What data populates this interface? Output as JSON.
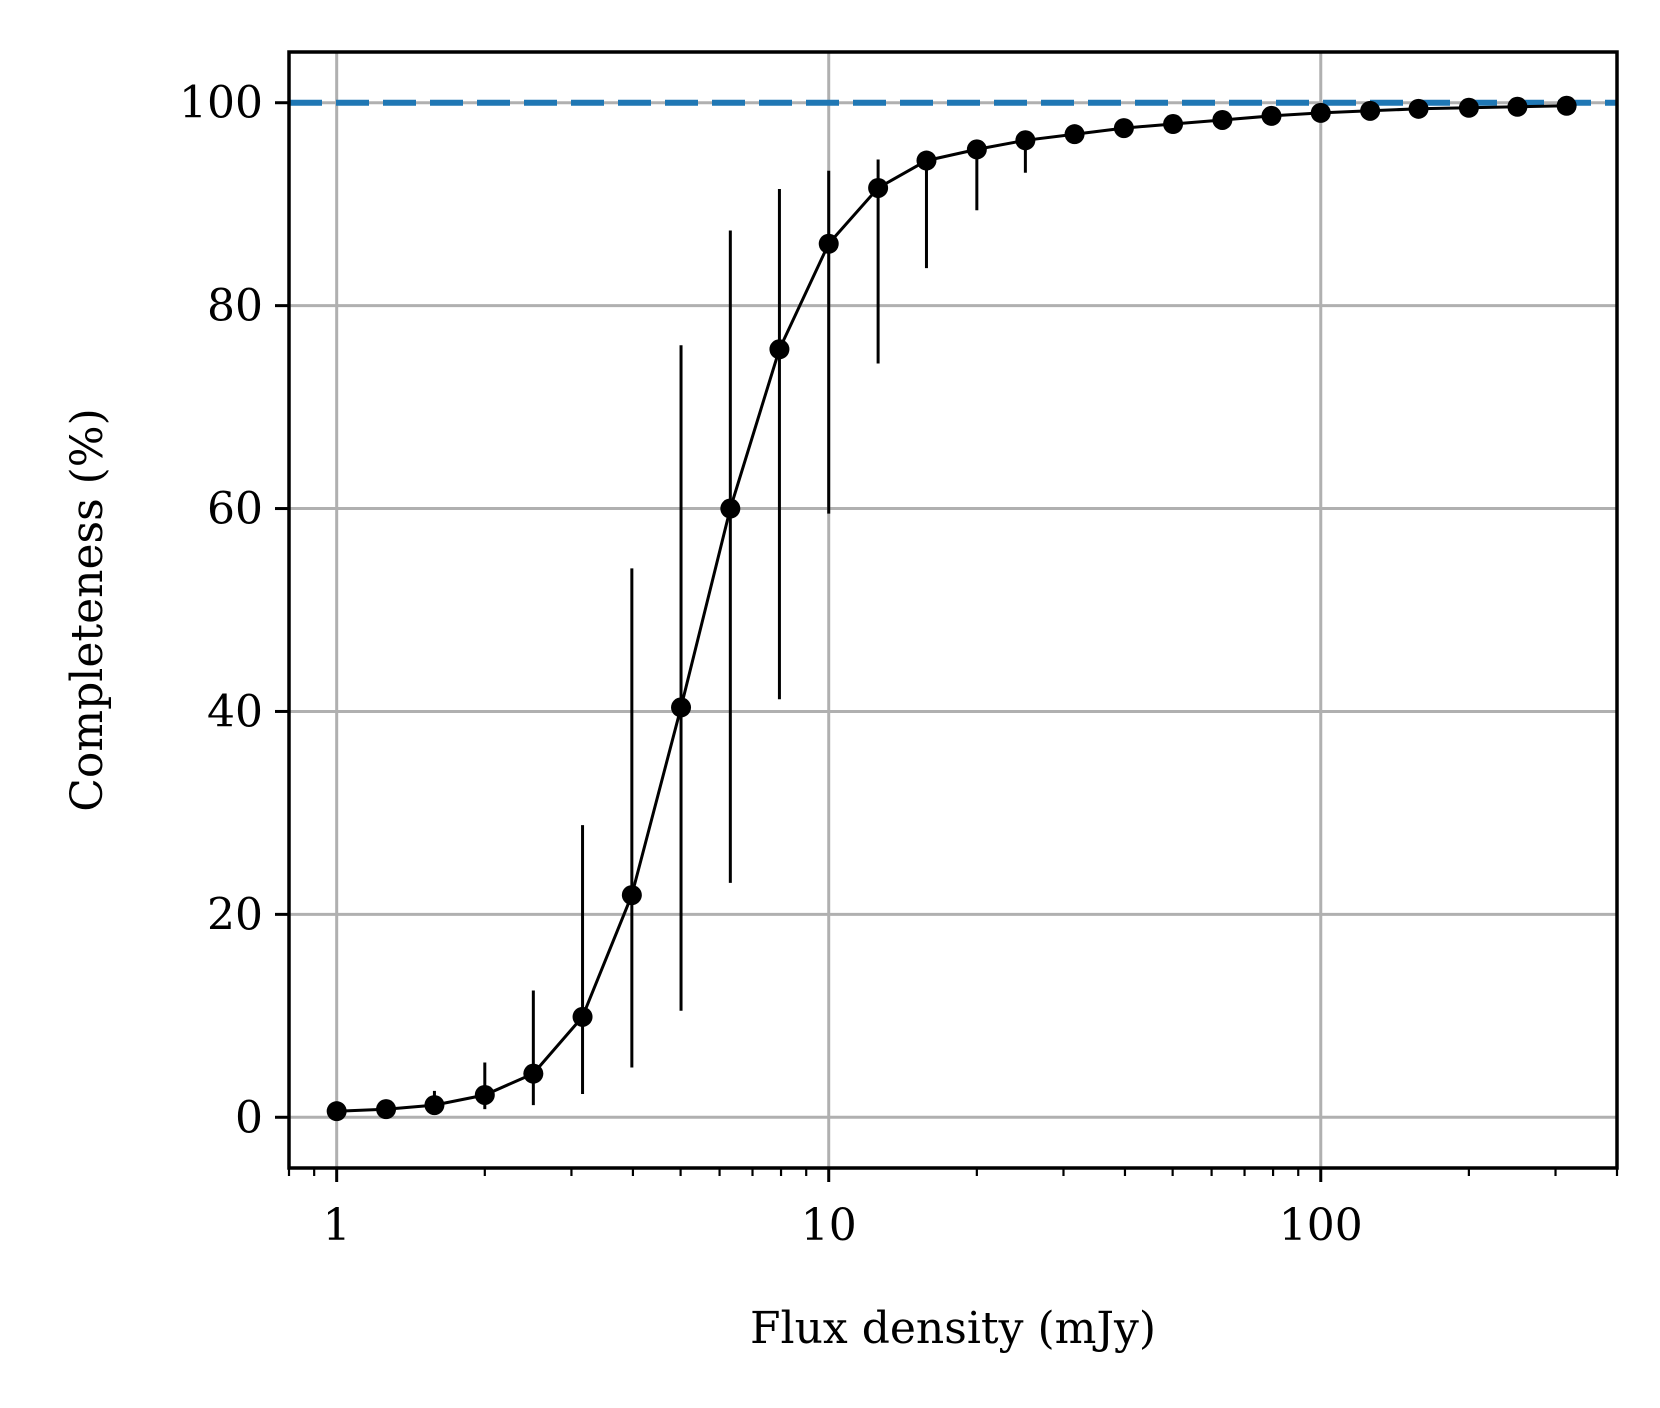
{
  "chart_data": {
    "type": "scatter",
    "xscale": "log",
    "xlabel": "Flux density (mJy)",
    "ylabel": "Completeness (%)",
    "xlim": [
      0.8,
      400
    ],
    "ylim": [
      -5,
      105
    ],
    "grid": true,
    "xticks": [
      {
        "value": 1,
        "label": "1"
      },
      {
        "value": 10,
        "label": "10"
      },
      {
        "value": 100,
        "label": "100"
      }
    ],
    "yticks": [
      {
        "value": 0,
        "label": "0"
      },
      {
        "value": 20,
        "label": "20"
      },
      {
        "value": 40,
        "label": "40"
      },
      {
        "value": 60,
        "label": "60"
      },
      {
        "value": 80,
        "label": "80"
      },
      {
        "value": 100,
        "label": "100"
      }
    ],
    "reference_line": {
      "y": 100,
      "style": "dashed",
      "color": "#1f77b4"
    },
    "series": [
      {
        "marker_color": "#000000",
        "points": [
          {
            "x": 1.0,
            "y": 0.6,
            "ylow": 0.6,
            "yhigh": 0.6
          },
          {
            "x": 1.26,
            "y": 0.8,
            "ylow": 0.8,
            "yhigh": 0.8
          },
          {
            "x": 1.58,
            "y": 1.2,
            "ylow": 0.8,
            "yhigh": 2.6
          },
          {
            "x": 2.0,
            "y": 2.2,
            "ylow": 0.8,
            "yhigh": 5.4
          },
          {
            "x": 2.51,
            "y": 4.3,
            "ylow": 1.2,
            "yhigh": 12.5
          },
          {
            "x": 3.16,
            "y": 9.9,
            "ylow": 2.3,
            "yhigh": 28.8
          },
          {
            "x": 3.98,
            "y": 21.9,
            "ylow": 4.9,
            "yhigh": 54.1
          },
          {
            "x": 5.01,
            "y": 40.4,
            "ylow": 10.5,
            "yhigh": 76.1
          },
          {
            "x": 6.31,
            "y": 60.0,
            "ylow": 23.1,
            "yhigh": 87.4
          },
          {
            "x": 7.94,
            "y": 75.7,
            "ylow": 41.2,
            "yhigh": 91.5
          },
          {
            "x": 10.0,
            "y": 86.1,
            "ylow": 59.5,
            "yhigh": 93.3
          },
          {
            "x": 12.6,
            "y": 91.6,
            "ylow": 74.3,
            "yhigh": 94.4
          },
          {
            "x": 15.8,
            "y": 94.3,
            "ylow": 83.7,
            "yhigh": 94.3
          },
          {
            "x": 20.0,
            "y": 95.4,
            "ylow": 89.4,
            "yhigh": 95.4
          },
          {
            "x": 25.1,
            "y": 96.3,
            "ylow": 93.1,
            "yhigh": 96.3
          },
          {
            "x": 31.6,
            "y": 96.9,
            "ylow": 96.0,
            "yhigh": 96.9
          },
          {
            "x": 39.8,
            "y": 97.5,
            "ylow": 97.5,
            "yhigh": 97.5
          },
          {
            "x": 50.1,
            "y": 97.9,
            "ylow": 97.9,
            "yhigh": 97.9
          },
          {
            "x": 63.1,
            "y": 98.3,
            "ylow": 98.3,
            "yhigh": 98.3
          },
          {
            "x": 79.4,
            "y": 98.7,
            "ylow": 98.7,
            "yhigh": 98.7
          },
          {
            "x": 100.0,
            "y": 99.0,
            "ylow": 99.0,
            "yhigh": 99.0
          },
          {
            "x": 126.0,
            "y": 99.2,
            "ylow": 99.2,
            "yhigh": 99.2
          },
          {
            "x": 158.0,
            "y": 99.4,
            "ylow": 99.4,
            "yhigh": 99.4
          },
          {
            "x": 200.0,
            "y": 99.5,
            "ylow": 99.5,
            "yhigh": 99.5
          },
          {
            "x": 251.0,
            "y": 99.6,
            "ylow": 99.6,
            "yhigh": 99.6
          },
          {
            "x": 316.0,
            "y": 99.7,
            "ylow": 99.7,
            "yhigh": 99.7
          }
        ]
      }
    ]
  }
}
